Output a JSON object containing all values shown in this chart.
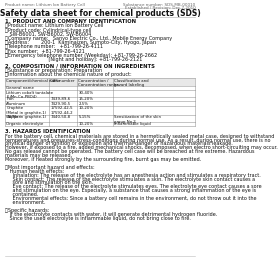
{
  "title": "Safety data sheet for chemical products (SDS)",
  "header_left": "Product name: Lithium Ion Battery Cell",
  "header_right_line1": "Substance number: SDS-MB-00010",
  "header_right_line2": "Established / Revision: Dec.7.2010",
  "section1_title": "1. PRODUCT AND COMPANY IDENTIFICATION",
  "section1_lines": [
    "・Product name: Lithium Ion Battery Cell",
    "・Product code: Cylindrical-type cell",
    "   SW-B6001, SW-B6002, SW-B6004",
    "・Company name:   Sanyo Electric Co., Ltd., Mobile Energy Company",
    "・Address:        200-1  Kaminaizen, Sumoto-City, Hyogo, Japan",
    "・Telephone number:   +81-799-26-4111",
    "・Fax number:  +81-799-26-4121",
    "・Emergency telephone number (Weekday): +81-799-26-2662",
    "                             [Night and holiday]: +81-799-26-2121"
  ],
  "section2_title": "2. COMPOSITION / INFORMATION ON INGREDIENTS",
  "section2_intro": "・Substance or preparation: Preparation",
  "section2_sub": "・Information about the chemical nature of product:",
  "table_headers": [
    "Component/chemical name",
    "CAS number",
    "Concentration /\nConcentration range",
    "Classification and\nhazard labeling"
  ],
  "table_rows": [
    [
      "General name",
      "",
      "",
      ""
    ],
    [
      "Lithium cobalt tantalate\n(LiMn-Co-PBO4)",
      "",
      "30-40%",
      ""
    ],
    [
      "Iron",
      "7439-89-6",
      "15-20%",
      ""
    ],
    [
      "Aluminum",
      "7429-90-5",
      "2-5%",
      ""
    ],
    [
      "Graphite\n(Metal in graphite-1)\n(Al/Mn in graphite-1)",
      "17592-42-5\n17592-44-2",
      "10-20%",
      ""
    ],
    [
      "Copper",
      "7440-50-8",
      "5-15%",
      "Sensitization of the skin\ngroup No.2"
    ],
    [
      "Organic electrolyte",
      "",
      "10-20%",
      "Inflammable liquid"
    ]
  ],
  "section3_title": "3. HAZARDS IDENTIFICATION",
  "section3_text": [
    "For the battery cell, chemical materials are stored in a hermetically sealed metal case, designed to withstand",
    "temperatures and pressures-stress-conditions during normal use. As a result, during normal use, there is no",
    "physical danger of ignition or explosion and thermal-danger of hazardous materials leakage.",
    "However, if exposed to a fire, added mechanical shocks, decomposed, when electro short-circuiting may occur.",
    "No gas release cannot be operated. The battery cell case will be breached at fire extreme. Hazardous",
    "materials may be released.",
    "Moreover, if heated strongly by the surrounding fire, burnt gas may be emitted.",
    "",
    "・Most important hazard and effects:",
    "   Human health effects:",
    "     Inhalation: The release of the electrolyte has an anesthesia action and stimulates a respiratory tract.",
    "     Skin contact: The release of the electrolyte stimulates a skin. The electrolyte skin contact causes a",
    "     sore and stimulation on the skin.",
    "     Eye contact: The release of the electrolyte stimulates eyes. The electrolyte eye contact causes a sore",
    "     and stimulation on the eye. Especially, a substance that causes a strong inflammation of the eye is",
    "     contained.",
    "     Environmental effects: Since a battery cell remains in the environment, do not throw out it into the",
    "     environment.",
    "",
    "・Specific hazards:",
    "   If the electrolyte contacts with water, it will generate detrimental hydrogen fluoride.",
    "   Since the used electrolyte is inflammable liquid, do not bring close to fire."
  ],
  "bg_color": "#ffffff",
  "text_color": "#111111",
  "gray_color": "#666666",
  "table_line_color": "#999999",
  "header_bg": "#e8e8e8"
}
